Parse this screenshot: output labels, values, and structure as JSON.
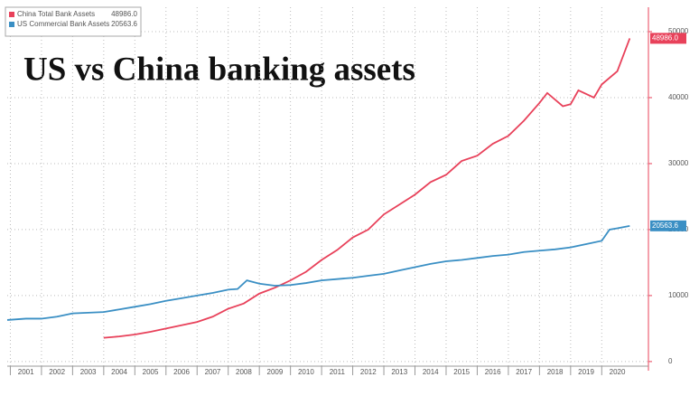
{
  "chart_data": {
    "type": "line",
    "title": "US vs China banking assets",
    "xlim": [
      2000.9,
      2021.5
    ],
    "xticks": [
      2001,
      2002,
      2003,
      2004,
      2005,
      2006,
      2007,
      2008,
      2009,
      2010,
      2011,
      2012,
      2013,
      2014,
      2015,
      2016,
      2017,
      2018,
      2019,
      2020
    ],
    "ylim": [
      -700,
      53700
    ],
    "yticks": [
      0,
      10000,
      20000,
      30000,
      40000,
      50000
    ],
    "grid": true,
    "legend": "top-left",
    "series": [
      {
        "name": "China Total Bank Assets",
        "color": "#e8415a",
        "x": [
          2004,
          2004.5,
          2005,
          2005.5,
          2006,
          2006.5,
          2007,
          2007.5,
          2008,
          2008.5,
          2009,
          2009.5,
          2010,
          2010.5,
          2011,
          2011.5,
          2012,
          2012.5,
          2013,
          2013.5,
          2014,
          2014.5,
          2015,
          2015.5,
          2016,
          2016.5,
          2017,
          2017.5,
          2018,
          2018.25,
          2018.75,
          2019,
          2019.25,
          2019.75,
          2020,
          2020.5,
          2020.9
        ],
        "values": [
          3600,
          3800,
          4100,
          4500,
          5000,
          5500,
          6000,
          6800,
          8000,
          8800,
          10300,
          11200,
          12300,
          13600,
          15400,
          16900,
          18800,
          20000,
          22300,
          23800,
          25300,
          27200,
          28300,
          30400,
          31200,
          33000,
          34200,
          36500,
          39200,
          40700,
          38700,
          39000,
          41100,
          40000,
          42000,
          44000,
          48986
        ],
        "value_labels": [
          null,
          null,
          null,
          null,
          null,
          null,
          null,
          null,
          null,
          null,
          null,
          null,
          null,
          null,
          null,
          null,
          null,
          null,
          null,
          null,
          null,
          null,
          null,
          null,
          null,
          null,
          null,
          null,
          null,
          null,
          null,
          null,
          null,
          null,
          null,
          null,
          "48986.0"
        ]
      },
      {
        "name": "US Commercial Bank Assets",
        "color": "#3a8fc4",
        "x": [
          2000.9,
          2001.5,
          2002,
          2002.5,
          2003,
          2003.5,
          2004,
          2004.5,
          2005,
          2005.5,
          2006,
          2006.5,
          2007,
          2007.5,
          2008,
          2008.3,
          2008.6,
          2009,
          2009.5,
          2010,
          2010.5,
          2011,
          2011.5,
          2012,
          2012.5,
          2013,
          2013.5,
          2014,
          2014.5,
          2015,
          2015.5,
          2016,
          2016.5,
          2017,
          2017.5,
          2018,
          2018.5,
          2019,
          2019.5,
          2020,
          2020.25,
          2020.5,
          2020.9
        ],
        "values": [
          6300,
          6500,
          6500,
          6800,
          7300,
          7400,
          7500,
          7900,
          8300,
          8700,
          9200,
          9600,
          10000,
          10400,
          10900,
          11000,
          12300,
          11800,
          11500,
          11600,
          11900,
          12300,
          12500,
          12700,
          13000,
          13300,
          13800,
          14300,
          14800,
          15200,
          15400,
          15700,
          16000,
          16200,
          16600,
          16800,
          17000,
          17300,
          17800,
          18300,
          20000,
          20200,
          20563.6
        ],
        "value_labels": [
          null,
          null,
          null,
          null,
          null,
          null,
          null,
          null,
          null,
          null,
          null,
          null,
          null,
          null,
          null,
          null,
          null,
          null,
          null,
          null,
          null,
          null,
          null,
          null,
          null,
          null,
          null,
          null,
          null,
          null,
          null,
          null,
          null,
          null,
          null,
          null,
          null,
          null,
          null,
          null,
          null,
          null,
          "20563.6"
        ]
      }
    ]
  }
}
